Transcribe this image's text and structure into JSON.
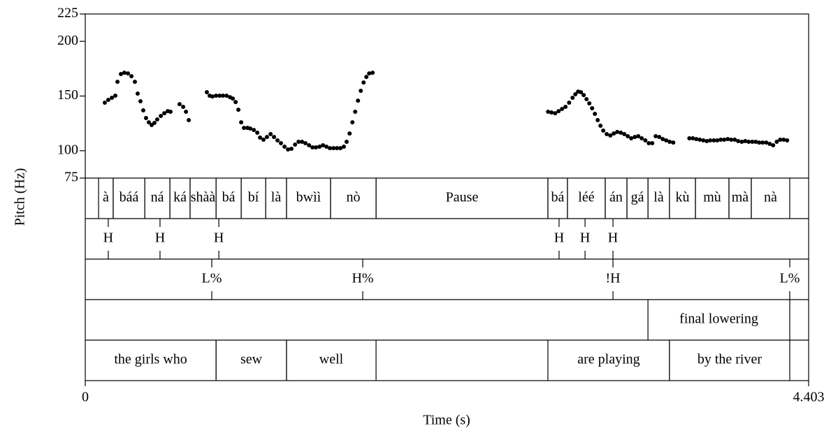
{
  "chart_data": {
    "type": "scatter",
    "x_label": "Time (s)",
    "y_label": "Pitch (Hz)",
    "xlim": [
      0,
      4.403
    ],
    "xticks": [
      0,
      4.403
    ],
    "ylim": [
      75,
      225
    ],
    "yticks": [
      75,
      100,
      150,
      200,
      225
    ],
    "color": "#000000",
    "x": [
      0.119,
      0.14,
      0.162,
      0.183,
      0.196,
      0.217,
      0.238,
      0.26,
      0.281,
      0.302,
      0.319,
      0.336,
      0.353,
      0.37,
      0.387,
      0.404,
      0.421,
      0.438,
      0.46,
      0.481,
      0.502,
      0.519,
      0.574,
      0.596,
      0.613,
      0.63,
      0.74,
      0.757,
      0.774,
      0.796,
      0.817,
      0.838,
      0.86,
      0.881,
      0.898,
      0.915,
      0.932,
      0.949,
      0.966,
      0.987,
      1.004,
      1.026,
      1.047,
      1.064,
      1.085,
      1.106,
      1.128,
      1.149,
      1.17,
      1.191,
      1.213,
      1.234,
      1.255,
      1.277,
      1.298,
      1.319,
      1.34,
      1.362,
      1.383,
      1.404,
      1.426,
      1.447,
      1.468,
      1.489,
      1.511,
      1.532,
      1.553,
      1.574,
      1.591,
      1.609,
      1.626,
      1.643,
      1.66,
      1.677,
      1.694,
      1.711,
      1.728,
      1.749,
      2.817,
      2.838,
      2.86,
      2.881,
      2.902,
      2.923,
      2.945,
      2.966,
      2.983,
      3.0,
      3.017,
      3.034,
      3.051,
      3.068,
      3.085,
      3.102,
      3.119,
      3.136,
      3.153,
      3.174,
      3.196,
      3.217,
      3.238,
      3.26,
      3.281,
      3.302,
      3.323,
      3.345,
      3.366,
      3.387,
      3.409,
      3.43,
      3.451,
      3.472,
      3.494,
      3.515,
      3.536,
      3.557,
      3.579,
      3.677,
      3.698,
      3.719,
      3.74,
      3.762,
      3.783,
      3.804,
      3.826,
      3.847,
      3.868,
      3.889,
      3.911,
      3.932,
      3.953,
      3.974,
      3.996,
      4.017,
      4.038,
      4.06,
      4.081,
      4.102,
      4.123,
      4.145,
      4.166,
      4.187,
      4.209,
      4.23,
      4.251,
      4.272
    ],
    "values": [
      143.9,
      146.5,
      148.4,
      150.3,
      163.0,
      170.1,
      171.3,
      170.7,
      168.1,
      163.0,
      152.2,
      145.2,
      136.9,
      129.9,
      126.0,
      123.5,
      125.4,
      128.6,
      131.8,
      134.3,
      136.2,
      135.6,
      142.6,
      140.1,
      135.6,
      128.0,
      153.5,
      150.3,
      149.6,
      150.3,
      150.3,
      150.3,
      150.3,
      149.0,
      147.7,
      144.5,
      137.5,
      126.0,
      120.9,
      120.9,
      120.3,
      119.0,
      116.5,
      112.0,
      110.1,
      112.6,
      115.2,
      112.6,
      109.5,
      106.9,
      103.7,
      101.2,
      101.8,
      105.6,
      108.2,
      108.2,
      106.9,
      105.0,
      103.1,
      103.1,
      103.7,
      105.0,
      103.7,
      102.4,
      102.4,
      102.4,
      102.4,
      103.7,
      108.2,
      115.8,
      126.0,
      135.6,
      145.8,
      154.8,
      162.4,
      167.5,
      170.7,
      171.3,
      135.6,
      135.0,
      134.3,
      136.2,
      138.2,
      140.1,
      143.9,
      148.4,
      151.6,
      154.1,
      153.5,
      150.9,
      147.1,
      143.3,
      138.8,
      133.7,
      128.0,
      122.9,
      118.4,
      115.2,
      113.9,
      115.8,
      117.1,
      116.5,
      115.2,
      113.3,
      111.4,
      112.6,
      113.3,
      111.4,
      109.5,
      106.9,
      106.9,
      113.3,
      112.6,
      110.7,
      109.5,
      108.2,
      107.5,
      111.4,
      111.4,
      110.7,
      110.1,
      109.5,
      108.8,
      109.5,
      109.5,
      109.5,
      110.1,
      110.1,
      110.7,
      110.1,
      110.1,
      108.8,
      108.2,
      108.8,
      108.2,
      108.2,
      108.2,
      107.5,
      107.5,
      107.5,
      106.3,
      105.0,
      108.2,
      110.1,
      110.1,
      109.5
    ],
    "tiers": [
      {
        "intervals": [
          {
            "text": "à",
            "start": 0.081,
            "end": 0.17
          },
          {
            "text": "báá",
            "start": 0.17,
            "end": 0.362
          },
          {
            "text": "ná",
            "start": 0.362,
            "end": 0.515
          },
          {
            "text": "ká",
            "start": 0.515,
            "end": 0.638
          },
          {
            "text": "shàà",
            "start": 0.638,
            "end": 0.796
          },
          {
            "text": "bá",
            "start": 0.796,
            "end": 0.949
          },
          {
            "text": "bí",
            "start": 0.949,
            "end": 1.098
          },
          {
            "text": "là",
            "start": 1.098,
            "end": 1.225
          },
          {
            "text": "bwìì",
            "start": 1.225,
            "end": 1.493
          },
          {
            "text": "nò",
            "start": 1.493,
            "end": 1.77
          },
          {
            "text": "Pause",
            "start": 1.77,
            "end": 2.816
          },
          {
            "text": "bá",
            "start": 2.816,
            "end": 2.935
          },
          {
            "text": "léé",
            "start": 2.935,
            "end": 3.165
          },
          {
            "text": "án",
            "start": 3.165,
            "end": 3.297
          },
          {
            "text": "gá",
            "start": 3.297,
            "end": 3.425
          },
          {
            "text": "là",
            "start": 3.425,
            "end": 3.556
          },
          {
            "text": "kù",
            "start": 3.556,
            "end": 3.714
          },
          {
            "text": "mù",
            "start": 3.714,
            "end": 3.918
          },
          {
            "text": "mà",
            "start": 3.918,
            "end": 4.054
          },
          {
            "text": "nà",
            "start": 4.054,
            "end": 4.288
          }
        ]
      },
      {
        "points": [
          {
            "text": "H",
            "time": 0.14
          },
          {
            "text": "H",
            "time": 0.455
          },
          {
            "text": "H",
            "time": 0.813
          },
          {
            "text": "H",
            "time": 2.884
          },
          {
            "text": "H",
            "time": 3.042
          },
          {
            "text": "H",
            "time": 3.212
          }
        ]
      },
      {
        "points": [
          {
            "text": "L%",
            "time": 0.77
          },
          {
            "text": "H%",
            "time": 1.689
          },
          {
            "text": "!H",
            "time": 3.212
          },
          {
            "text": "L%",
            "time": 4.288
          }
        ]
      },
      {
        "intervals": [
          {
            "text": "final lowering",
            "start": 3.425,
            "end": 4.288
          }
        ]
      },
      {
        "intervals": [
          {
            "text": "the girls who",
            "start": 0,
            "end": 0.796
          },
          {
            "text": "sew",
            "start": 0.796,
            "end": 1.225
          },
          {
            "text": "well",
            "start": 1.225,
            "end": 1.77
          },
          {
            "text": "are playing",
            "start": 2.816,
            "end": 3.556
          },
          {
            "text": "by the river",
            "start": 3.556,
            "end": 4.288
          }
        ]
      }
    ]
  }
}
